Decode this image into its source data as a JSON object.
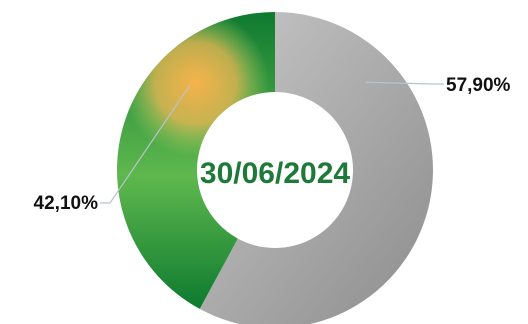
{
  "chart_data": {
    "type": "pie",
    "center_label": "30/06/2024",
    "slices": [
      {
        "label": "57,90%",
        "value": 57.9,
        "color": "#a6a6a6"
      },
      {
        "label": "42,10%",
        "value": 42.1,
        "color": "#1e8a3c"
      }
    ],
    "colors": {
      "center_text": "#1f7a3a",
      "leader_line": "#b9c3cc",
      "gray_light": "#c4c4c4",
      "gray_dark": "#8f8f8f",
      "green_dark": "#0e7a30",
      "green_light": "#8fd16a",
      "orange": "#f4b04a"
    }
  }
}
